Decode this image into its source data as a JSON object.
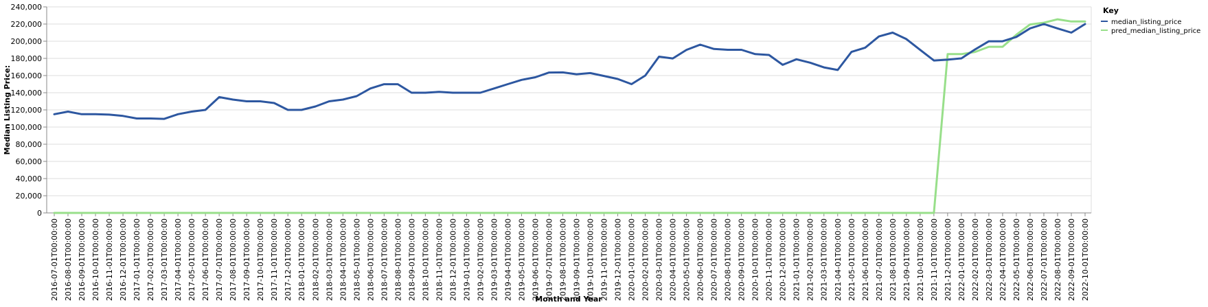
{
  "chart_data": {
    "type": "line",
    "xlabel": "Month and Year",
    "ylabel": "Median Listing Price:",
    "ylim": [
      0,
      240000
    ],
    "y_ticks": [
      "0",
      "20,000",
      "40,000",
      "60,000",
      "80,000",
      "100,000",
      "120,000",
      "140,000",
      "160,000",
      "180,000",
      "200,000",
      "220,000",
      "240,000"
    ],
    "y_tick_values": [
      0,
      20000,
      40000,
      60000,
      80000,
      100000,
      120000,
      140000,
      160000,
      180000,
      200000,
      220000,
      240000
    ],
    "grid": true,
    "legend_title": "Key",
    "legend_position": "top-right",
    "x": [
      "2016-07-01T00:00:00",
      "2016-08-01T00:00:00",
      "2016-09-01T00:00:00",
      "2016-10-01T00:00:00",
      "2016-11-01T00:00:00",
      "2016-12-01T00:00:00",
      "2017-01-01T00:00:00",
      "2017-02-01T00:00:00",
      "2017-03-01T00:00:00",
      "2017-04-01T00:00:00",
      "2017-05-01T00:00:00",
      "2017-06-01T00:00:00",
      "2017-07-01T00:00:00",
      "2017-08-01T00:00:00",
      "2017-09-01T00:00:00",
      "2017-10-01T00:00:00",
      "2017-11-01T00:00:00",
      "2017-12-01T00:00:00",
      "2018-01-01T00:00:00",
      "2018-02-01T00:00:00",
      "2018-03-01T00:00:00",
      "2018-04-01T00:00:00",
      "2018-05-01T00:00:00",
      "2018-06-01T00:00:00",
      "2018-07-01T00:00:00",
      "2018-08-01T00:00:00",
      "2018-09-01T00:00:00",
      "2018-10-01T00:00:00",
      "2018-11-01T00:00:00",
      "2018-12-01T00:00:00",
      "2019-01-01T00:00:00",
      "2019-02-01T00:00:00",
      "2019-03-01T00:00:00",
      "2019-04-01T00:00:00",
      "2019-05-01T00:00:00",
      "2019-06-01T00:00:00",
      "2019-07-01T00:00:00",
      "2019-08-01T00:00:00",
      "2019-09-01T00:00:00",
      "2019-10-01T00:00:00",
      "2019-11-01T00:00:00",
      "2019-12-01T00:00:00",
      "2020-01-01T00:00:00",
      "2020-02-01T00:00:00",
      "2020-03-01T00:00:00",
      "2020-04-01T00:00:00",
      "2020-05-01T00:00:00",
      "2020-06-01T00:00:00",
      "2020-07-01T00:00:00",
      "2020-08-01T00:00:00",
      "2020-09-01T00:00:00",
      "2020-10-01T00:00:00",
      "2020-11-01T00:00:00",
      "2020-12-01T00:00:00",
      "2021-01-01T00:00:00",
      "2021-02-01T00:00:00",
      "2021-03-01T00:00:00",
      "2021-04-01T00:00:00",
      "2021-05-01T00:00:00",
      "2021-06-01T00:00:00",
      "2021-07-01T00:00:00",
      "2021-08-01T00:00:00",
      "2021-09-01T00:00:00",
      "2021-10-01T00:00:00",
      "2021-11-01T00:00:00",
      "2021-12-01T00:00:00",
      "2022-01-01T00:00:00",
      "2022-02-01T00:00:00",
      "2022-03-01T00:00:00",
      "2022-04-01T00:00:00",
      "2022-05-01T00:00:00",
      "2022-06-01T00:00:00",
      "2022-07-01T00:00:00",
      "2022-08-01T00:00:00",
      "2022-09-01T00:00:00",
      "2022-10-01T00:00:00"
    ],
    "series": [
      {
        "name": "median_listing_price",
        "color": "#2d57a0",
        "values": [
          115000,
          118000,
          115000,
          115000,
          114500,
          113000,
          110000,
          110000,
          109500,
          115000,
          118000,
          120000,
          134900,
          132000,
          130000,
          130000,
          128000,
          120000,
          120000,
          124000,
          130000,
          132000,
          136000,
          145000,
          149900,
          149900,
          140000,
          140000,
          141000,
          140000,
          140000,
          140000,
          145000,
          150000,
          155000,
          158000,
          163500,
          163700,
          161500,
          162900,
          159500,
          156000,
          150000,
          160000,
          182000,
          179900,
          189900,
          196000,
          191000,
          190000,
          190000,
          185000,
          184000,
          172500,
          179000,
          175000,
          169500,
          166500,
          187500,
          192500,
          205500,
          210000,
          202500,
          189900,
          177500,
          178500,
          180000,
          190500,
          199900,
          199900,
          205000,
          215000,
          220000,
          214900,
          210000,
          220000
        ]
      },
      {
        "name": "pred_median_listing_price",
        "color": "#98df8a",
        "values": [
          0,
          0,
          0,
          0,
          0,
          0,
          0,
          0,
          0,
          0,
          0,
          0,
          0,
          0,
          0,
          0,
          0,
          0,
          0,
          0,
          0,
          0,
          0,
          0,
          0,
          0,
          0,
          0,
          0,
          0,
          0,
          0,
          0,
          0,
          0,
          0,
          0,
          0,
          0,
          0,
          0,
          0,
          0,
          0,
          0,
          0,
          0,
          0,
          0,
          0,
          0,
          0,
          0,
          0,
          0,
          0,
          0,
          0,
          0,
          0,
          0,
          0,
          0,
          0,
          0,
          185000,
          185000,
          187500,
          193500,
          193500,
          207500,
          219500,
          221500,
          225500,
          223000,
          223000
        ]
      }
    ]
  }
}
